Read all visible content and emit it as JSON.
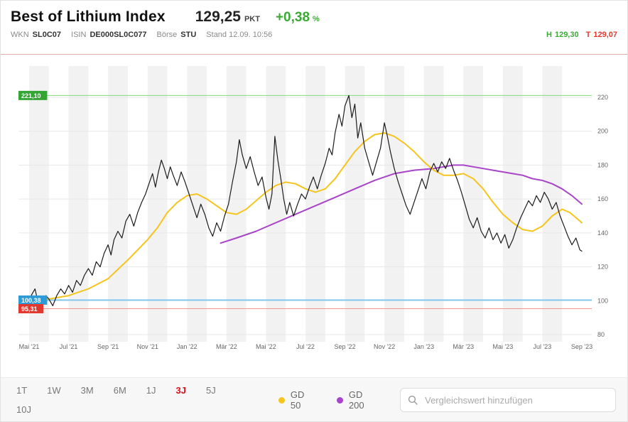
{
  "header": {
    "title": "Best of Lithium Index",
    "price": "129,25",
    "unit": "PKT",
    "change": "+0,38",
    "change_unit": "%",
    "wkn_label": "WKN",
    "wkn": "SL0C07",
    "isin_label": "ISIN",
    "isin": "DE000SL0C077",
    "boerse_label": "Börse",
    "boerse": "STU",
    "stand": "Stand 12.09. 10:56",
    "high_label": "H",
    "high": "129,30",
    "low_label": "T",
    "low": "129,07",
    "positive_color": "#3aaa35",
    "negative_color": "#e2382e"
  },
  "toolbar": {
    "ranges": [
      "1T",
      "1W",
      "3M",
      "6M",
      "1J",
      "3J",
      "5J",
      "10J"
    ],
    "active_range": "3J",
    "active_color": "#d30f1c",
    "legend": [
      {
        "label": "GD 50",
        "color": "#f5c41e"
      },
      {
        "label": "GD 200",
        "color": "#a844c8"
      }
    ],
    "search_placeholder": "Vergleichswert hinzufügen"
  },
  "chart_data": {
    "type": "line",
    "title": "Best of Lithium Index — 3J",
    "x_unit": "months since Mai '21",
    "ylim": [
      80,
      232
    ],
    "grid": true,
    "stripe_color": "#f2f2f2",
    "grid_color": "#e7e7e7",
    "axis_text_color": "#666666",
    "y_ticks": [
      80,
      100,
      120,
      140,
      160,
      180,
      200,
      220
    ],
    "x_ticks": [
      {
        "m": 0,
        "label": "Mai '21"
      },
      {
        "m": 2,
        "label": "Jul '21"
      },
      {
        "m": 4,
        "label": "Sep '21"
      },
      {
        "m": 6,
        "label": "Nov '21"
      },
      {
        "m": 8,
        "label": "Jan '22"
      },
      {
        "m": 10,
        "label": "Mär '22"
      },
      {
        "m": 12,
        "label": "Mai '22"
      },
      {
        "m": 14,
        "label": "Jul '22"
      },
      {
        "m": 16,
        "label": "Sep '22"
      },
      {
        "m": 18,
        "label": "Nov '22"
      },
      {
        "m": 20,
        "label": "Jan '23"
      },
      {
        "m": 22,
        "label": "Mär '23"
      },
      {
        "m": 24,
        "label": "Mai '23"
      },
      {
        "m": 26,
        "label": "Jul '23"
      },
      {
        "m": 28,
        "label": "Sep '23"
      }
    ],
    "markers": [
      {
        "name": "high-line",
        "label": "221,10",
        "value": 221.1,
        "line_color": "#82d882",
        "box_color": "#33a532",
        "width": 1
      },
      {
        "name": "base-line",
        "label": "100,38",
        "value": 100.38,
        "line_color": "#85c9ef",
        "box_color": "#2d9bd8",
        "width": 2
      },
      {
        "name": "low-line",
        "label": "95,31",
        "value": 95.31,
        "line_color": "#f0948c",
        "box_color": "#e2382e",
        "width": 1
      }
    ],
    "series": [
      {
        "name": "Best of Lithium Index",
        "color": "#1c1c1c",
        "width": 1.2,
        "points": [
          [
            0,
            100.4
          ],
          [
            0.15,
            104
          ],
          [
            0.3,
            107
          ],
          [
            0.45,
            99
          ],
          [
            0.55,
            95.3
          ],
          [
            0.7,
            99
          ],
          [
            0.85,
            103
          ],
          [
            1,
            101
          ],
          [
            1.2,
            97
          ],
          [
            1.4,
            103
          ],
          [
            1.6,
            107
          ],
          [
            1.8,
            104
          ],
          [
            2,
            109
          ],
          [
            2.2,
            105
          ],
          [
            2.4,
            112
          ],
          [
            2.6,
            109
          ],
          [
            2.8,
            115
          ],
          [
            3,
            119
          ],
          [
            3.2,
            115
          ],
          [
            3.4,
            123
          ],
          [
            3.6,
            120
          ],
          [
            3.8,
            128
          ],
          [
            4,
            133
          ],
          [
            4.15,
            127
          ],
          [
            4.3,
            136
          ],
          [
            4.5,
            141
          ],
          [
            4.7,
            137
          ],
          [
            4.9,
            147
          ],
          [
            5.1,
            151
          ],
          [
            5.3,
            144
          ],
          [
            5.5,
            152
          ],
          [
            5.7,
            158
          ],
          [
            5.9,
            163
          ],
          [
            6.1,
            170
          ],
          [
            6.25,
            175
          ],
          [
            6.4,
            167
          ],
          [
            6.55,
            176
          ],
          [
            6.7,
            183
          ],
          [
            6.85,
            178
          ],
          [
            7,
            172
          ],
          [
            7.15,
            179
          ],
          [
            7.3,
            174
          ],
          [
            7.5,
            168
          ],
          [
            7.7,
            176
          ],
          [
            7.9,
            170
          ],
          [
            8.1,
            163
          ],
          [
            8.3,
            156
          ],
          [
            8.5,
            149
          ],
          [
            8.7,
            157
          ],
          [
            8.9,
            151
          ],
          [
            9.1,
            143
          ],
          [
            9.3,
            138
          ],
          [
            9.5,
            146
          ],
          [
            9.7,
            141
          ],
          [
            9.9,
            150
          ],
          [
            10.1,
            157
          ],
          [
            10.3,
            170
          ],
          [
            10.5,
            182
          ],
          [
            10.65,
            195
          ],
          [
            10.8,
            186
          ],
          [
            11,
            178
          ],
          [
            11.2,
            185
          ],
          [
            11.4,
            176
          ],
          [
            11.6,
            168
          ],
          [
            11.8,
            173
          ],
          [
            12,
            161
          ],
          [
            12.15,
            154
          ],
          [
            12.3,
            163
          ],
          [
            12.45,
            197
          ],
          [
            12.6,
            183
          ],
          [
            12.75,
            172
          ],
          [
            12.9,
            160
          ],
          [
            13.05,
            151
          ],
          [
            13.2,
            158
          ],
          [
            13.4,
            150
          ],
          [
            13.6,
            157
          ],
          [
            13.8,
            163
          ],
          [
            14,
            160
          ],
          [
            14.2,
            167
          ],
          [
            14.4,
            173
          ],
          [
            14.6,
            166
          ],
          [
            14.8,
            174
          ],
          [
            15,
            181
          ],
          [
            15.2,
            190
          ],
          [
            15.35,
            186
          ],
          [
            15.5,
            199
          ],
          [
            15.7,
            210
          ],
          [
            15.85,
            203
          ],
          [
            16,
            215
          ],
          [
            16.2,
            221.1
          ],
          [
            16.35,
            208
          ],
          [
            16.5,
            216
          ],
          [
            16.65,
            196
          ],
          [
            16.8,
            205
          ],
          [
            17,
            190
          ],
          [
            17.2,
            182
          ],
          [
            17.4,
            174
          ],
          [
            17.6,
            182
          ],
          [
            17.8,
            190
          ],
          [
            18,
            205
          ],
          [
            18.15,
            197
          ],
          [
            18.3,
            188
          ],
          [
            18.5,
            178
          ],
          [
            18.7,
            170
          ],
          [
            18.9,
            163
          ],
          [
            19.1,
            156
          ],
          [
            19.3,
            151
          ],
          [
            19.5,
            158
          ],
          [
            19.7,
            165
          ],
          [
            19.9,
            172
          ],
          [
            20.1,
            166
          ],
          [
            20.3,
            176
          ],
          [
            20.5,
            181
          ],
          [
            20.7,
            176
          ],
          [
            20.9,
            182
          ],
          [
            21.1,
            178
          ],
          [
            21.3,
            184
          ],
          [
            21.5,
            177
          ],
          [
            21.7,
            171
          ],
          [
            21.9,
            164
          ],
          [
            22.1,
            156
          ],
          [
            22.3,
            148
          ],
          [
            22.5,
            143
          ],
          [
            22.7,
            149
          ],
          [
            22.9,
            141
          ],
          [
            23.1,
            137
          ],
          [
            23.3,
            143
          ],
          [
            23.5,
            136
          ],
          [
            23.7,
            140
          ],
          [
            23.9,
            134
          ],
          [
            24.1,
            139
          ],
          [
            24.3,
            131
          ],
          [
            24.5,
            136
          ],
          [
            24.7,
            143
          ],
          [
            24.9,
            149
          ],
          [
            25.1,
            154
          ],
          [
            25.3,
            159
          ],
          [
            25.5,
            156
          ],
          [
            25.7,
            162
          ],
          [
            25.9,
            158
          ],
          [
            26.1,
            164
          ],
          [
            26.3,
            160
          ],
          [
            26.5,
            154
          ],
          [
            26.7,
            158
          ],
          [
            26.9,
            150
          ],
          [
            27.1,
            144
          ],
          [
            27.3,
            138
          ],
          [
            27.5,
            133
          ],
          [
            27.7,
            137
          ],
          [
            27.9,
            130
          ],
          [
            28,
            129.25
          ]
        ]
      },
      {
        "name": "GD 50",
        "color": "#f5c41e",
        "width": 2,
        "points": [
          [
            0.3,
            101
          ],
          [
            1,
            101
          ],
          [
            2,
            103
          ],
          [
            3,
            107
          ],
          [
            4,
            113
          ],
          [
            5,
            124
          ],
          [
            6,
            136
          ],
          [
            6.5,
            143
          ],
          [
            7,
            152
          ],
          [
            7.5,
            158
          ],
          [
            8,
            162
          ],
          [
            8.5,
            163
          ],
          [
            9,
            160
          ],
          [
            9.5,
            156
          ],
          [
            10,
            152
          ],
          [
            10.5,
            151
          ],
          [
            11,
            154
          ],
          [
            11.5,
            159
          ],
          [
            12,
            164
          ],
          [
            12.5,
            168
          ],
          [
            13,
            170
          ],
          [
            13.5,
            169
          ],
          [
            14,
            166
          ],
          [
            14.5,
            164
          ],
          [
            15,
            166
          ],
          [
            15.5,
            172
          ],
          [
            16,
            180
          ],
          [
            16.5,
            188
          ],
          [
            17,
            194
          ],
          [
            17.5,
            198
          ],
          [
            18,
            199
          ],
          [
            18.5,
            197
          ],
          [
            19,
            193
          ],
          [
            19.5,
            188
          ],
          [
            20,
            182
          ],
          [
            20.5,
            177
          ],
          [
            21,
            174
          ],
          [
            21.5,
            174
          ],
          [
            22,
            175
          ],
          [
            22.5,
            172
          ],
          [
            23,
            166
          ],
          [
            23.5,
            158
          ],
          [
            24,
            151
          ],
          [
            24.5,
            146
          ],
          [
            25,
            142
          ],
          [
            25.5,
            141
          ],
          [
            26,
            144
          ],
          [
            26.5,
            150
          ],
          [
            27,
            154
          ],
          [
            27.4,
            152
          ],
          [
            27.7,
            149
          ],
          [
            28,
            146
          ]
        ]
      },
      {
        "name": "GD 200",
        "color": "#a844c8",
        "width": 2,
        "points": [
          [
            9.7,
            134
          ],
          [
            10.5,
            137
          ],
          [
            11.5,
            141
          ],
          [
            12.5,
            146
          ],
          [
            13.5,
            151
          ],
          [
            14.5,
            156
          ],
          [
            15.5,
            161
          ],
          [
            16.5,
            166
          ],
          [
            17.5,
            171
          ],
          [
            18.5,
            175
          ],
          [
            19.5,
            177
          ],
          [
            20.5,
            178
          ],
          [
            21,
            179
          ],
          [
            21.5,
            180
          ],
          [
            22,
            180
          ],
          [
            22.5,
            179
          ],
          [
            23,
            178
          ],
          [
            23.5,
            177
          ],
          [
            24,
            176
          ],
          [
            24.5,
            175
          ],
          [
            25,
            174
          ],
          [
            25.5,
            172
          ],
          [
            26,
            171
          ],
          [
            26.5,
            169
          ],
          [
            27,
            166
          ],
          [
            27.5,
            162
          ],
          [
            28,
            157
          ]
        ]
      }
    ]
  }
}
